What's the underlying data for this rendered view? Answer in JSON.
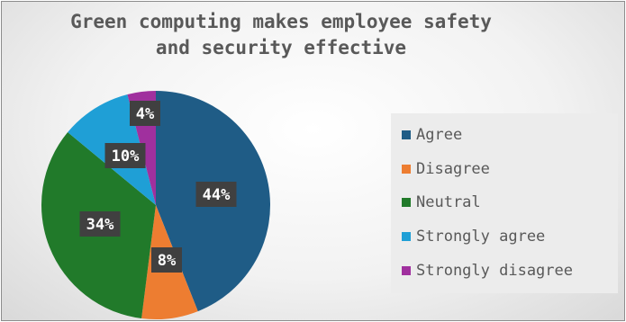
{
  "chart_data": {
    "type": "pie",
    "title_lines": [
      "Green computing makes employee safety",
      "and security effective"
    ],
    "categories": [
      "Agree",
      "Disagree",
      "Neutral",
      "Strongly agree",
      "Strongly disagree"
    ],
    "values": [
      44,
      8,
      34,
      10,
      4
    ],
    "value_labels": [
      "44%",
      "8%",
      "34%",
      "10%",
      "4%"
    ],
    "colors": [
      "#1f5c86",
      "#ed7d31",
      "#217a2a",
      "#1f9fd6",
      "#a0309e"
    ],
    "legend_position": "right",
    "data_label_style": "dark-boxed"
  }
}
